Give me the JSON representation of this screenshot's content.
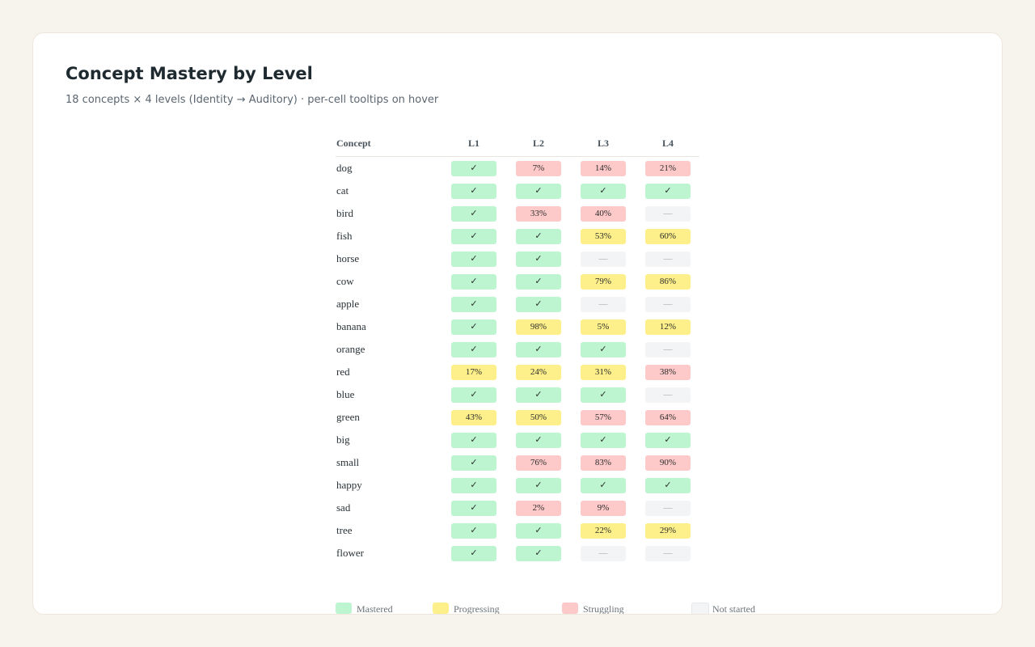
{
  "header": {
    "title": "Concept Mastery by Level",
    "subtitle": "18 concepts × 4 levels (Identity → Auditory) · per-cell tooltips on hover"
  },
  "chart_data": {
    "type": "heatmap",
    "columns": {
      "concept": "Concept",
      "levels": [
        "L1",
        "L2",
        "L3",
        "L4"
      ]
    },
    "rows": [
      {
        "concept": "dog",
        "cells": [
          {
            "status": "mastered",
            "label": "✓"
          },
          {
            "status": "struggling",
            "label": "7%"
          },
          {
            "status": "struggling",
            "label": "14%"
          },
          {
            "status": "struggling",
            "label": "21%"
          }
        ]
      },
      {
        "concept": "cat",
        "cells": [
          {
            "status": "mastered",
            "label": "✓"
          },
          {
            "status": "mastered",
            "label": "✓"
          },
          {
            "status": "mastered",
            "label": "✓"
          },
          {
            "status": "mastered",
            "label": "✓"
          }
        ]
      },
      {
        "concept": "bird",
        "cells": [
          {
            "status": "mastered",
            "label": "✓"
          },
          {
            "status": "struggling",
            "label": "33%"
          },
          {
            "status": "struggling",
            "label": "40%"
          },
          {
            "status": "notstarted",
            "label": "—"
          }
        ]
      },
      {
        "concept": "fish",
        "cells": [
          {
            "status": "mastered",
            "label": "✓"
          },
          {
            "status": "mastered",
            "label": "✓"
          },
          {
            "status": "progressing",
            "label": "53%"
          },
          {
            "status": "progressing",
            "label": "60%"
          }
        ]
      },
      {
        "concept": "horse",
        "cells": [
          {
            "status": "mastered",
            "label": "✓"
          },
          {
            "status": "mastered",
            "label": "✓"
          },
          {
            "status": "notstarted",
            "label": "—"
          },
          {
            "status": "notstarted",
            "label": "—"
          }
        ]
      },
      {
        "concept": "cow",
        "cells": [
          {
            "status": "mastered",
            "label": "✓"
          },
          {
            "status": "mastered",
            "label": "✓"
          },
          {
            "status": "progressing",
            "label": "79%"
          },
          {
            "status": "progressing",
            "label": "86%"
          }
        ]
      },
      {
        "concept": "apple",
        "cells": [
          {
            "status": "mastered",
            "label": "✓"
          },
          {
            "status": "mastered",
            "label": "✓"
          },
          {
            "status": "notstarted",
            "label": "—"
          },
          {
            "status": "notstarted",
            "label": "—"
          }
        ]
      },
      {
        "concept": "banana",
        "cells": [
          {
            "status": "mastered",
            "label": "✓"
          },
          {
            "status": "progressing",
            "label": "98%"
          },
          {
            "status": "progressing",
            "label": "5%"
          },
          {
            "status": "progressing",
            "label": "12%"
          }
        ]
      },
      {
        "concept": "orange",
        "cells": [
          {
            "status": "mastered",
            "label": "✓"
          },
          {
            "status": "mastered",
            "label": "✓"
          },
          {
            "status": "mastered",
            "label": "✓"
          },
          {
            "status": "notstarted",
            "label": "—"
          }
        ]
      },
      {
        "concept": "red",
        "cells": [
          {
            "status": "progressing",
            "label": "17%"
          },
          {
            "status": "progressing",
            "label": "24%"
          },
          {
            "status": "progressing",
            "label": "31%"
          },
          {
            "status": "struggling",
            "label": "38%"
          }
        ]
      },
      {
        "concept": "blue",
        "cells": [
          {
            "status": "mastered",
            "label": "✓"
          },
          {
            "status": "mastered",
            "label": "✓"
          },
          {
            "status": "mastered",
            "label": "✓"
          },
          {
            "status": "notstarted",
            "label": "—"
          }
        ]
      },
      {
        "concept": "green",
        "cells": [
          {
            "status": "progressing",
            "label": "43%"
          },
          {
            "status": "progressing",
            "label": "50%"
          },
          {
            "status": "struggling",
            "label": "57%"
          },
          {
            "status": "struggling",
            "label": "64%"
          }
        ]
      },
      {
        "concept": "big",
        "cells": [
          {
            "status": "mastered",
            "label": "✓"
          },
          {
            "status": "mastered",
            "label": "✓"
          },
          {
            "status": "mastered",
            "label": "✓"
          },
          {
            "status": "mastered",
            "label": "✓"
          }
        ]
      },
      {
        "concept": "small",
        "cells": [
          {
            "status": "mastered",
            "label": "✓"
          },
          {
            "status": "struggling",
            "label": "76%"
          },
          {
            "status": "struggling",
            "label": "83%"
          },
          {
            "status": "struggling",
            "label": "90%"
          }
        ]
      },
      {
        "concept": "happy",
        "cells": [
          {
            "status": "mastered",
            "label": "✓"
          },
          {
            "status": "mastered",
            "label": "✓"
          },
          {
            "status": "mastered",
            "label": "✓"
          },
          {
            "status": "mastered",
            "label": "✓"
          }
        ]
      },
      {
        "concept": "sad",
        "cells": [
          {
            "status": "mastered",
            "label": "✓"
          },
          {
            "status": "struggling",
            "label": "2%"
          },
          {
            "status": "struggling",
            "label": "9%"
          },
          {
            "status": "notstarted",
            "label": "—"
          }
        ]
      },
      {
        "concept": "tree",
        "cells": [
          {
            "status": "mastered",
            "label": "✓"
          },
          {
            "status": "mastered",
            "label": "✓"
          },
          {
            "status": "progressing",
            "label": "22%"
          },
          {
            "status": "progressing",
            "label": "29%"
          }
        ]
      },
      {
        "concept": "flower",
        "cells": [
          {
            "status": "mastered",
            "label": "✓"
          },
          {
            "status": "mastered",
            "label": "✓"
          },
          {
            "status": "notstarted",
            "label": "—"
          },
          {
            "status": "notstarted",
            "label": "—"
          }
        ]
      }
    ],
    "legend": [
      {
        "status": "mastered",
        "label": "Mastered",
        "color": "#bdf5d1"
      },
      {
        "status": "progressing",
        "label": "Progressing",
        "color": "#fdf08a"
      },
      {
        "status": "struggling",
        "label": "Struggling",
        "color": "#fdc9c9"
      },
      {
        "status": "notstarted",
        "label": "Not started",
        "color": "#f3f4f6"
      }
    ]
  }
}
